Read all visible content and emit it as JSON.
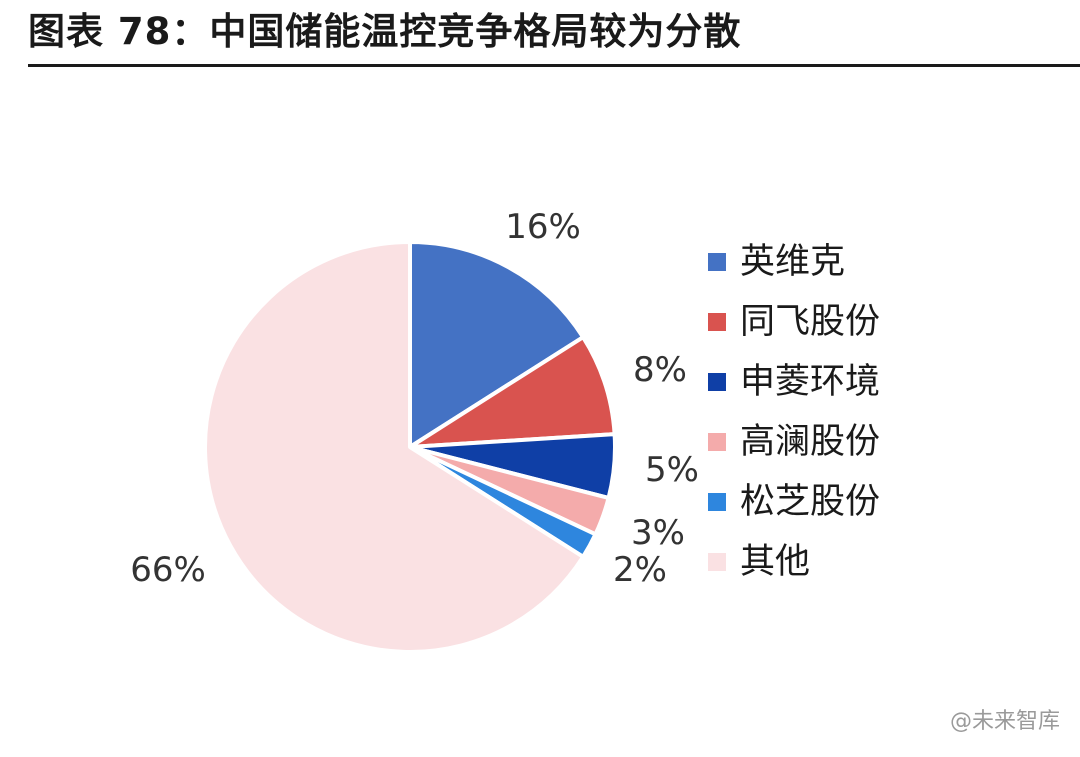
{
  "header": {
    "title": "图表 78：中国储能温控竞争格局较为分散"
  },
  "chart_data": {
    "type": "pie",
    "categories": [
      "英维克",
      "同飞股份",
      "申菱环境",
      "高澜股份",
      "松芝股份",
      "其他"
    ],
    "values": [
      16,
      8,
      5,
      3,
      2,
      66
    ],
    "labels": [
      "16%",
      "8%",
      "5%",
      "3%",
      "2%",
      "66%"
    ],
    "colors": [
      "#4472c4",
      "#d9534f",
      "#0f3fa6",
      "#f4abab",
      "#2e86de",
      "#fae1e3"
    ],
    "legend_placement": "right",
    "start_angle": "12 o'clock",
    "direction": "clockwise"
  },
  "watermark": {
    "text": "@未来智库"
  }
}
